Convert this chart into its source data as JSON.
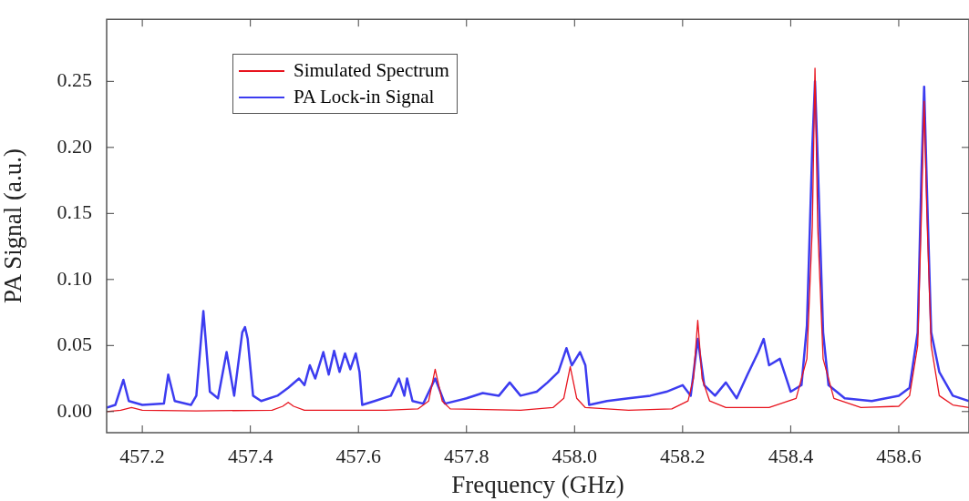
{
  "chart_data": {
    "type": "line",
    "xlabel": "Frequency (GHz)",
    "ylabel": "PA Signal (a.u.)",
    "xlim": [
      457.134,
      458.73
    ],
    "ylim": [
      -0.016,
      0.297
    ],
    "xticks": [
      457.2,
      457.4,
      457.6,
      457.8,
      {
        "value": 458.0,
        "label": "458.0"
      },
      458.2,
      458.4,
      458.6
    ],
    "yticks": [
      {
        "value": 0,
        "label": "0.00"
      },
      {
        "value": 0.05,
        "label": "0.05"
      },
      {
        "value": 0.1,
        "label": "0.10"
      },
      {
        "value": 0.15,
        "label": "0.15"
      },
      {
        "value": 0.2,
        "label": "0.20"
      },
      {
        "value": 0.25,
        "label": "0.25"
      }
    ],
    "grid": false,
    "legend": "top left",
    "marker": "none",
    "line_style": "solid",
    "series": [
      {
        "name": "Simulated Spectrum",
        "color": "#e8141e",
        "x": [
          457.134,
          457.16,
          457.18,
          457.2,
          457.3,
          457.44,
          457.46,
          457.47,
          457.48,
          457.5,
          457.65,
          457.71,
          457.73,
          457.742,
          457.755,
          457.77,
          457.9,
          457.96,
          457.98,
          457.992,
          458.004,
          458.02,
          458.1,
          458.18,
          458.21,
          458.22,
          458.228,
          458.236,
          458.25,
          458.28,
          458.36,
          458.41,
          458.43,
          458.44,
          458.445,
          458.45,
          458.46,
          458.48,
          458.53,
          458.6,
          458.62,
          458.635,
          458.642,
          458.647,
          458.652,
          458.66,
          458.675,
          458.7,
          458.73
        ],
        "values": [
          0,
          0.001,
          0.003,
          0.001,
          0.0005,
          0.001,
          0.004,
          0.007,
          0.004,
          0.001,
          0.001,
          0.002,
          0.008,
          0.032,
          0.008,
          0.002,
          0.001,
          0.003,
          0.01,
          0.034,
          0.01,
          0.003,
          0.001,
          0.002,
          0.008,
          0.025,
          0.069,
          0.025,
          0.008,
          0.003,
          0.003,
          0.01,
          0.04,
          0.14,
          0.26,
          0.14,
          0.04,
          0.01,
          0.003,
          0.004,
          0.012,
          0.05,
          0.15,
          0.235,
          0.15,
          0.05,
          0.012,
          0.005,
          0.003
        ]
      },
      {
        "name": "PA Lock-in Signal",
        "color": "#3c3cf0",
        "x": [
          457.134,
          457.15,
          457.165,
          457.175,
          457.2,
          457.24,
          457.248,
          457.26,
          457.29,
          457.3,
          457.313,
          457.325,
          457.34,
          457.356,
          457.37,
          457.385,
          457.39,
          457.395,
          457.405,
          457.42,
          457.45,
          457.47,
          457.49,
          457.5,
          457.51,
          457.52,
          457.535,
          457.545,
          457.555,
          457.565,
          457.575,
          457.585,
          457.595,
          457.602,
          457.607,
          457.63,
          457.66,
          457.675,
          457.685,
          457.69,
          457.7,
          457.72,
          457.742,
          457.76,
          457.8,
          457.83,
          457.86,
          457.88,
          457.9,
          457.93,
          457.95,
          457.97,
          457.985,
          457.995,
          458.01,
          458.02,
          458.027,
          458.06,
          458.1,
          458.14,
          458.17,
          458.2,
          458.215,
          458.228,
          458.24,
          458.26,
          458.28,
          458.3,
          458.32,
          458.34,
          458.35,
          458.36,
          458.38,
          458.4,
          458.42,
          458.43,
          458.44,
          458.445,
          458.45,
          458.46,
          458.47,
          458.5,
          458.55,
          458.6,
          458.62,
          458.635,
          458.642,
          458.647,
          458.652,
          458.66,
          458.675,
          458.7,
          458.73
        ],
        "values": [
          0.003,
          0.005,
          0.024,
          0.008,
          0.005,
          0.006,
          0.028,
          0.008,
          0.005,
          0.012,
          0.076,
          0.015,
          0.01,
          0.045,
          0.012,
          0.06,
          0.064,
          0.055,
          0.012,
          0.008,
          0.012,
          0.018,
          0.025,
          0.02,
          0.035,
          0.025,
          0.045,
          0.028,
          0.046,
          0.03,
          0.044,
          0.032,
          0.044,
          0.03,
          0.005,
          0.008,
          0.012,
          0.025,
          0.012,
          0.025,
          0.008,
          0.006,
          0.025,
          0.006,
          0.01,
          0.014,
          0.012,
          0.022,
          0.012,
          0.015,
          0.022,
          0.03,
          0.048,
          0.035,
          0.045,
          0.035,
          0.005,
          0.008,
          0.01,
          0.012,
          0.015,
          0.02,
          0.012,
          0.055,
          0.02,
          0.012,
          0.022,
          0.01,
          0.028,
          0.045,
          0.055,
          0.035,
          0.04,
          0.015,
          0.02,
          0.065,
          0.2,
          0.25,
          0.19,
          0.06,
          0.02,
          0.01,
          0.008,
          0.012,
          0.018,
          0.06,
          0.18,
          0.246,
          0.17,
          0.06,
          0.03,
          0.012,
          0.008
        ]
      }
    ]
  }
}
